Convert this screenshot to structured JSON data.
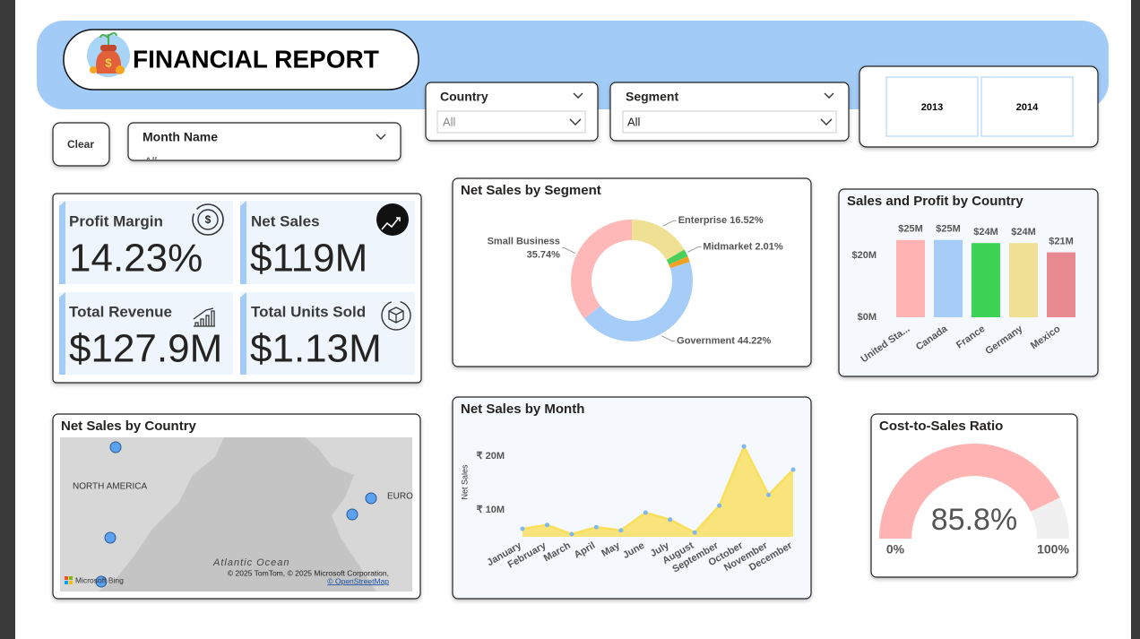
{
  "header": {
    "title": "FINANCIAL REPORT"
  },
  "filters": {
    "clear": "Clear",
    "month": {
      "label": "Month Name",
      "value": "All"
    },
    "country": {
      "label": "Country",
      "value": "All"
    },
    "segment": {
      "label": "Segment",
      "value": "All"
    },
    "years": [
      "2013",
      "2014"
    ]
  },
  "kpis": [
    {
      "label": "Profit Margin",
      "value": "14.23%"
    },
    {
      "label": "Net Sales",
      "value": "$119M"
    },
    {
      "label": "Total Revenue",
      "value": "$127.9M"
    },
    {
      "label": "Total Units Sold",
      "value": "$1.13M"
    }
  ],
  "map": {
    "title": "Net Sales by Country",
    "labels": [
      "NORTH AMERICA",
      "EURO",
      "Atlantic Ocean"
    ],
    "attribution": "© 2025 TomTom, © 2025 Microsoft Corporation,",
    "osm": "© OpenStreetMap",
    "brand": "Microsoft Bing"
  },
  "chart_data": [
    {
      "type": "donut",
      "title": "Net Sales by Segment",
      "categories": [
        "Enterprise",
        "Midmarket",
        null,
        "Government",
        "Small Business"
      ],
      "values": [
        16.52,
        2.01,
        1.51,
        44.22,
        35.74
      ],
      "value_labels": [
        "16.52%",
        "2.01%",
        null,
        "44.22%",
        "35.74%"
      ],
      "colors": [
        "#f0e094",
        "#4ccf5a",
        "#f2a024",
        "#a5cdf7",
        "#ffb8b8"
      ]
    },
    {
      "type": "bar",
      "title": "Sales and Profit by Country",
      "categories": [
        "United Sta...",
        "Canada",
        "France",
        "Germany",
        "Mexico"
      ],
      "values": [
        25,
        25,
        24,
        24,
        21
      ],
      "value_labels": [
        "$25M",
        "$25M",
        "$24M",
        "$24M",
        "$21M"
      ],
      "colors": [
        "#ffb3b3",
        "#a5cdf7",
        "#3dd455",
        "#f0e094",
        "#e8898f"
      ],
      "ylim": [
        0,
        28
      ],
      "yticks": [
        {
          "value": 0,
          "label": "$0M"
        },
        {
          "value": 20,
          "label": "$20M"
        }
      ]
    },
    {
      "type": "area",
      "title": "Net Sales by Month",
      "ylabel": "Net Sales",
      "categories": [
        "January",
        "February",
        "March",
        "April",
        "May",
        "June",
        "July",
        "August",
        "September",
        "October",
        "November",
        "December"
      ],
      "values": [
        6.5,
        7.2,
        5.5,
        6.8,
        6.2,
        9.5,
        8.2,
        5.8,
        10.8,
        21.8,
        12.8,
        17.5
      ],
      "color": "#f9df5a",
      "ylim": [
        5,
        23
      ],
      "yticks": [
        {
          "value": 10,
          "label": "₹ 10M"
        },
        {
          "value": 20,
          "label": "₹ 20M"
        }
      ]
    },
    {
      "type": "gauge",
      "title": "Cost-to-Sales Ratio",
      "value": 85.8,
      "value_label": "85.8%",
      "color": "#ffb3b3",
      "ylim": [
        0,
        100
      ],
      "yticks": [
        {
          "value": 0,
          "label": "0%"
        },
        {
          "value": 100,
          "label": "100%"
        }
      ]
    }
  ]
}
